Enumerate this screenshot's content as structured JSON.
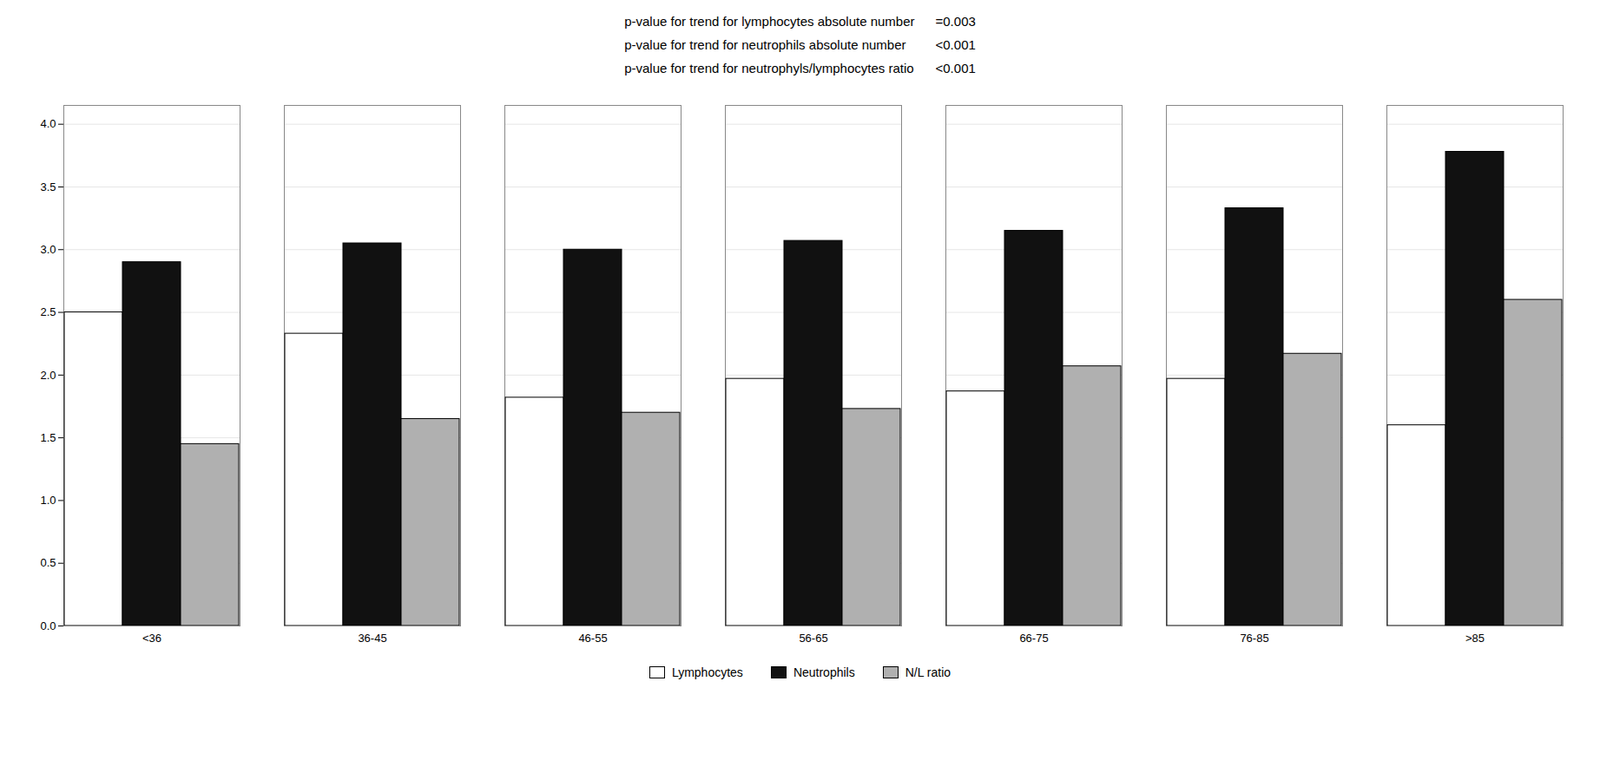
{
  "chart_data": {
    "type": "bar",
    "categories": [
      "<36",
      "36-45",
      "46-55",
      "56-65",
      "66-75",
      "76-85",
      ">85"
    ],
    "series": [
      {
        "name": "Lymphocytes",
        "color": "#ffffff",
        "values": [
          2.5,
          2.33,
          1.82,
          1.97,
          1.87,
          1.97,
          1.6
        ]
      },
      {
        "name": "Neutrophils",
        "color": "#111111",
        "values": [
          2.9,
          3.05,
          3.0,
          3.07,
          3.15,
          3.33,
          3.78
        ]
      },
      {
        "name": "N/L ratio",
        "color": "#b0b0b0",
        "values": [
          1.45,
          1.65,
          1.7,
          1.73,
          2.07,
          2.17,
          2.6
        ]
      }
    ],
    "ylim": [
      0,
      4.15
    ],
    "yticks": [
      0,
      0.5,
      1,
      1.5,
      2,
      2.5,
      3,
      3.5,
      4
    ],
    "grid": true,
    "legend": "bottom",
    "annotations": [
      [
        "p-value for trend for lymphocytes absolute number",
        "=0.003"
      ],
      [
        "p-value for trend for neutrophils absolute number",
        "<0.001"
      ],
      [
        "p-value for trend for neutrophyls/lymphocytes ratio",
        "<0.001"
      ]
    ]
  }
}
